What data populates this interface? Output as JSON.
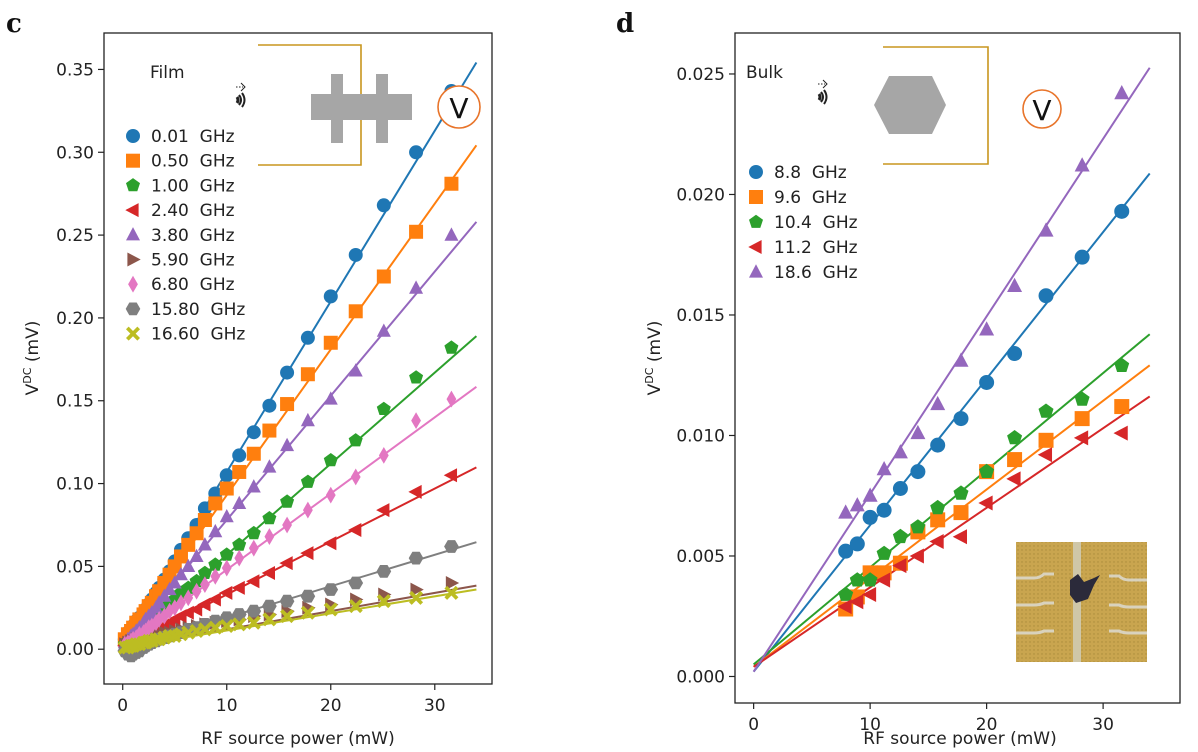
{
  "chart_data": [
    {
      "panel": "c",
      "type": "scatter",
      "title": "",
      "sample_label": "Film",
      "xlabel": "RF source power (mW)",
      "ylabel": "V^DC (mV)",
      "ylabel_main": "V",
      "ylabel_sup": "DC",
      "ylabel_unit": "(mV)",
      "xlim": [
        -1.8,
        35.5
      ],
      "ylim": [
        -0.021,
        0.372
      ],
      "xticks": [
        0,
        10,
        20,
        30
      ],
      "xtick_labels": [
        "0",
        "10",
        "20",
        "30"
      ],
      "yticks": [
        0.0,
        0.05,
        0.1,
        0.15,
        0.2,
        0.25,
        0.3,
        0.35
      ],
      "ytick_labels": [
        "0.00",
        "0.05",
        "0.10",
        "0.15",
        "0.20",
        "0.25",
        "0.30",
        "0.35"
      ],
      "grid": false,
      "legend_position": "top-left",
      "fit_x_range": [
        0,
        34
      ],
      "x": [
        0.2,
        0.5,
        0.8,
        1.0,
        1.3,
        1.6,
        2.0,
        2.2,
        2.5,
        2.8,
        3.2,
        3.5,
        4.0,
        4.5,
        5.0,
        5.6,
        6.3,
        7.1,
        7.9,
        8.9,
        10.0,
        11.2,
        12.6,
        14.1,
        15.8,
        17.8,
        20.0,
        22.4,
        25.1,
        28.2,
        31.6
      ],
      "series": [
        {
          "name": "0.01  GHz",
          "color": "#1f77b4",
          "marker": "circle",
          "fit": [
            0.004,
            0.0103
          ],
          "values": [
            0.006,
            0.01,
            0.012,
            0.014,
            0.017,
            0.019,
            0.022,
            0.024,
            0.027,
            0.03,
            0.034,
            0.037,
            0.042,
            0.047,
            0.053,
            0.06,
            0.067,
            0.075,
            0.085,
            0.094,
            0.105,
            0.117,
            0.131,
            0.147,
            0.167,
            0.188,
            0.213,
            0.238,
            0.268,
            0.3,
            0.337
          ]
        },
        {
          "name": "0.50  GHz",
          "color": "#ff7f0e",
          "marker": "square",
          "fit": [
            0.005,
            0.0088
          ],
          "values": [
            0.006,
            0.009,
            0.011,
            0.013,
            0.016,
            0.018,
            0.021,
            0.023,
            0.026,
            0.028,
            0.032,
            0.035,
            0.04,
            0.045,
            0.05,
            0.056,
            0.063,
            0.07,
            0.078,
            0.088,
            0.097,
            0.107,
            0.118,
            0.132,
            0.148,
            0.166,
            0.185,
            0.204,
            0.225,
            0.252,
            0.281
          ]
        },
        {
          "name": "1.00  GHz",
          "color": "#2ca02c",
          "marker": "pentagon",
          "fit": [
            0.002,
            0.0055
          ],
          "values": [
            0.003,
            0.005,
            0.006,
            0.007,
            0.009,
            0.01,
            0.012,
            0.014,
            0.016,
            0.017,
            0.019,
            0.021,
            0.024,
            0.027,
            0.03,
            0.034,
            0.037,
            0.041,
            0.046,
            0.051,
            0.057,
            0.063,
            0.07,
            0.079,
            0.089,
            0.101,
            0.114,
            0.126,
            0.145,
            0.164,
            0.182
          ]
        },
        {
          "name": "2.40  GHz",
          "color": "#d62728",
          "marker": "triangle-left",
          "fit": [
            0.001,
            0.0032
          ],
          "values": [
            0.002,
            0.003,
            0.003,
            0.004,
            0.005,
            0.006,
            0.007,
            0.008,
            0.009,
            0.01,
            0.011,
            0.012,
            0.014,
            0.016,
            0.018,
            0.02,
            0.022,
            0.024,
            0.027,
            0.03,
            0.034,
            0.037,
            0.041,
            0.046,
            0.052,
            0.058,
            0.064,
            0.072,
            0.084,
            0.095,
            0.105
          ]
        },
        {
          "name": "3.80  GHz",
          "color": "#9467bd",
          "marker": "triangle-up",
          "fit": [
            0.003,
            0.0075
          ],
          "values": [
            0.004,
            0.006,
            0.008,
            0.009,
            0.011,
            0.013,
            0.016,
            0.018,
            0.02,
            0.022,
            0.025,
            0.028,
            0.032,
            0.036,
            0.04,
            0.045,
            0.05,
            0.056,
            0.063,
            0.071,
            0.08,
            0.088,
            0.098,
            0.11,
            0.123,
            0.138,
            0.151,
            0.168,
            0.192,
            0.218,
            0.25
          ]
        },
        {
          "name": "5.90  GHz",
          "color": "#8c564b",
          "marker": "triangle-right",
          "fit": [
            0.001,
            0.0011
          ],
          "values": [
            0.003,
            0.004,
            0.005,
            0.005,
            0.006,
            0.006,
            0.006,
            0.007,
            0.007,
            0.008,
            0.008,
            0.009,
            0.01,
            0.01,
            0.011,
            0.012,
            0.013,
            0.014,
            0.015,
            0.016,
            0.017,
            0.018,
            0.02,
            0.021,
            0.023,
            0.025,
            0.027,
            0.03,
            0.033,
            0.036,
            0.04
          ]
        },
        {
          "name": "6.80  GHz",
          "color": "#e377c2",
          "marker": "diamond",
          "fit": [
            0.002,
            0.0046
          ],
          "values": [
            0.003,
            0.004,
            0.005,
            0.006,
            0.007,
            0.009,
            0.01,
            0.011,
            0.013,
            0.014,
            0.016,
            0.018,
            0.02,
            0.023,
            0.025,
            0.028,
            0.031,
            0.035,
            0.039,
            0.044,
            0.049,
            0.055,
            0.061,
            0.068,
            0.075,
            0.084,
            0.093,
            0.104,
            0.117,
            0.138,
            0.151
          ]
        },
        {
          "name": "15.80  GHz",
          "color": "#7f7f7f",
          "marker": "hexagon",
          "fit": [
            0.0,
            0.0019
          ],
          "values": [
            -0.001,
            -0.003,
            -0.004,
            -0.003,
            -0.002,
            -0.001,
            0.001,
            0.002,
            0.003,
            0.004,
            0.005,
            0.006,
            0.007,
            0.008,
            0.009,
            0.01,
            0.012,
            0.013,
            0.015,
            0.017,
            0.019,
            0.021,
            0.023,
            0.026,
            0.029,
            0.032,
            0.036,
            0.04,
            0.047,
            0.055,
            0.062
          ]
        },
        {
          "name": "16.60  GHz",
          "color": "#bcbd22",
          "marker": "x",
          "fit": [
            0.001,
            0.00103
          ],
          "values": [
            0.001,
            0.001,
            0.002,
            0.002,
            0.003,
            0.003,
            0.004,
            0.004,
            0.005,
            0.005,
            0.006,
            0.006,
            0.007,
            0.008,
            0.008,
            0.009,
            0.01,
            0.011,
            0.012,
            0.013,
            0.014,
            0.015,
            0.016,
            0.018,
            0.02,
            0.022,
            0.024,
            0.026,
            0.029,
            0.031,
            0.034
          ]
        }
      ]
    },
    {
      "panel": "d",
      "type": "scatter",
      "title": "",
      "sample_label": "Bulk",
      "xlabel": "RF source power (mW)",
      "ylabel": "V^DC (mV)",
      "ylabel_main": "V",
      "ylabel_sup": "DC",
      "ylabel_unit": "(mV)",
      "xlim": [
        -1.6,
        36.6
      ],
      "ylim": [
        -0.0011,
        0.0267
      ],
      "xticks": [
        0,
        10,
        20,
        30
      ],
      "xtick_labels": [
        "0",
        "10",
        "20",
        "30"
      ],
      "yticks": [
        0.0,
        0.005,
        0.01,
        0.015,
        0.02,
        0.025
      ],
      "ytick_labels": [
        "0.000",
        "0.005",
        "0.010",
        "0.015",
        "0.020",
        "0.025"
      ],
      "grid": false,
      "legend_position": "upper-left",
      "fit_x_range": [
        0,
        34
      ],
      "x": [
        7.9,
        8.9,
        10.0,
        11.2,
        12.6,
        14.1,
        15.8,
        17.8,
        20.0,
        22.4,
        25.1,
        28.2,
        31.6
      ],
      "series": [
        {
          "name": "8.8  GHz",
          "color": "#1f77b4",
          "marker": "circle",
          "fit": [
            0.0002,
            0.000608
          ],
          "values": [
            0.0052,
            0.0055,
            0.0066,
            0.0069,
            0.0078,
            0.0085,
            0.0096,
            0.0107,
            0.0122,
            0.0134,
            0.0158,
            0.0174,
            0.0193
          ]
        },
        {
          "name": "9.6  GHz",
          "color": "#ff7f0e",
          "marker": "square",
          "fit": [
            0.0004,
            0.000368
          ],
          "values": [
            0.0028,
            0.0033,
            0.0043,
            0.0043,
            0.0047,
            0.006,
            0.0065,
            0.0068,
            0.0085,
            0.009,
            0.0098,
            0.0107,
            0.0112
          ]
        },
        {
          "name": "10.4  GHz",
          "color": "#2ca02c",
          "marker": "pentagon",
          "fit": [
            0.0005,
            0.000403
          ],
          "values": [
            0.0034,
            0.004,
            0.004,
            0.0051,
            0.0058,
            0.0062,
            0.007,
            0.0076,
            0.0085,
            0.0099,
            0.011,
            0.0115,
            0.0129
          ]
        },
        {
          "name": "11.2  GHz",
          "color": "#d62728",
          "marker": "triangle-left",
          "fit": [
            0.0004,
            0.00033
          ],
          "values": [
            0.0029,
            0.0031,
            0.0034,
            0.004,
            0.0046,
            0.005,
            0.0056,
            0.0058,
            0.0072,
            0.0082,
            0.0092,
            0.0099,
            0.0101
          ]
        },
        {
          "name": "18.6  GHz",
          "color": "#9467bd",
          "marker": "triangle-up",
          "fit": [
            0.0002,
            0.000737
          ],
          "values": [
            0.0068,
            0.0071,
            0.0075,
            0.0086,
            0.0093,
            0.0101,
            0.0113,
            0.0131,
            0.0144,
            0.0162,
            0.0185,
            0.0212,
            0.0242
          ]
        }
      ]
    }
  ],
  "insets": {
    "film_device": "schematic: wave source, grey double-cross film device, voltmeter V",
    "bulk_device": "schematic: wave source, grey hexagon bulk device, voltmeter V",
    "voltmeter_label": "V",
    "photo": "optical micrograph of bulk flake on electrodes"
  },
  "colors": {
    "circuit_wire": "#c8961e",
    "voltmeter_ring": "#e8742a",
    "device_grey": "#a6a6a6",
    "photo_bg": "#c9a54f"
  }
}
